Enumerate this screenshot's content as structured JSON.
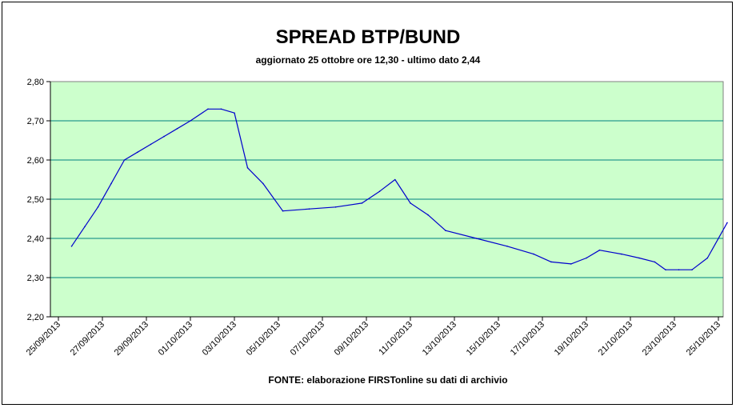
{
  "chart_data": {
    "type": "line",
    "title": "SPREAD BTP/BUND",
    "subtitle": "aggiornato 25 ottobre ore 12,30 - ultimo dato 2,44",
    "source_note": "FONTE: elaborazione FIRSTonline su dati di archivio",
    "xlabel": "",
    "ylabel": "",
    "ylim": [
      2.2,
      2.8
    ],
    "yticks": [
      "2,80",
      "2,70",
      "2,60",
      "2,50",
      "2,40",
      "2,30",
      "2,20"
    ],
    "xticks": [
      "25/09/2013",
      "27/09/2013",
      "29/09/2013",
      "01/10/2013",
      "03/10/2013",
      "05/10/2013",
      "07/10/2013",
      "09/10/2013",
      "11/10/2013",
      "13/10/2013",
      "15/10/2013",
      "17/10/2013",
      "19/10/2013",
      "21/10/2013",
      "23/10/2013",
      "25/10/2013"
    ],
    "plot_background": "#ccffcc",
    "gridline_color": "#008080",
    "line_color": "#0000cc",
    "grid": true,
    "legend": "none",
    "series": [
      {
        "x": [
          0.3,
          0.6,
          0.9,
          1.2,
          1.5,
          1.8,
          2.1,
          2.4,
          2.7,
          3.0,
          3.4,
          3.7,
          4.0,
          4.3,
          4.65,
          5.1,
          5.7,
          6.3,
          6.9,
          7.3,
          7.65,
          8.0,
          8.4,
          8.8,
          9.5,
          10.2,
          10.8,
          11.2,
          11.65,
          12.0,
          12.3,
          12.8,
          13.2,
          13.55,
          13.8,
          14.1,
          14.4,
          14.75,
          15.2
        ],
        "y": [
          2.38,
          2.43,
          2.48,
          2.54,
          2.6,
          2.62,
          2.64,
          2.66,
          2.68,
          2.7,
          2.73,
          2.73,
          2.72,
          2.58,
          2.54,
          2.47,
          2.475,
          2.48,
          2.49,
          2.52,
          2.55,
          2.49,
          2.46,
          2.42,
          2.4,
          2.38,
          2.36,
          2.34,
          2.335,
          2.35,
          2.37,
          2.36,
          2.35,
          2.34,
          2.32,
          2.32,
          2.32,
          2.35,
          2.44
        ]
      }
    ]
  }
}
